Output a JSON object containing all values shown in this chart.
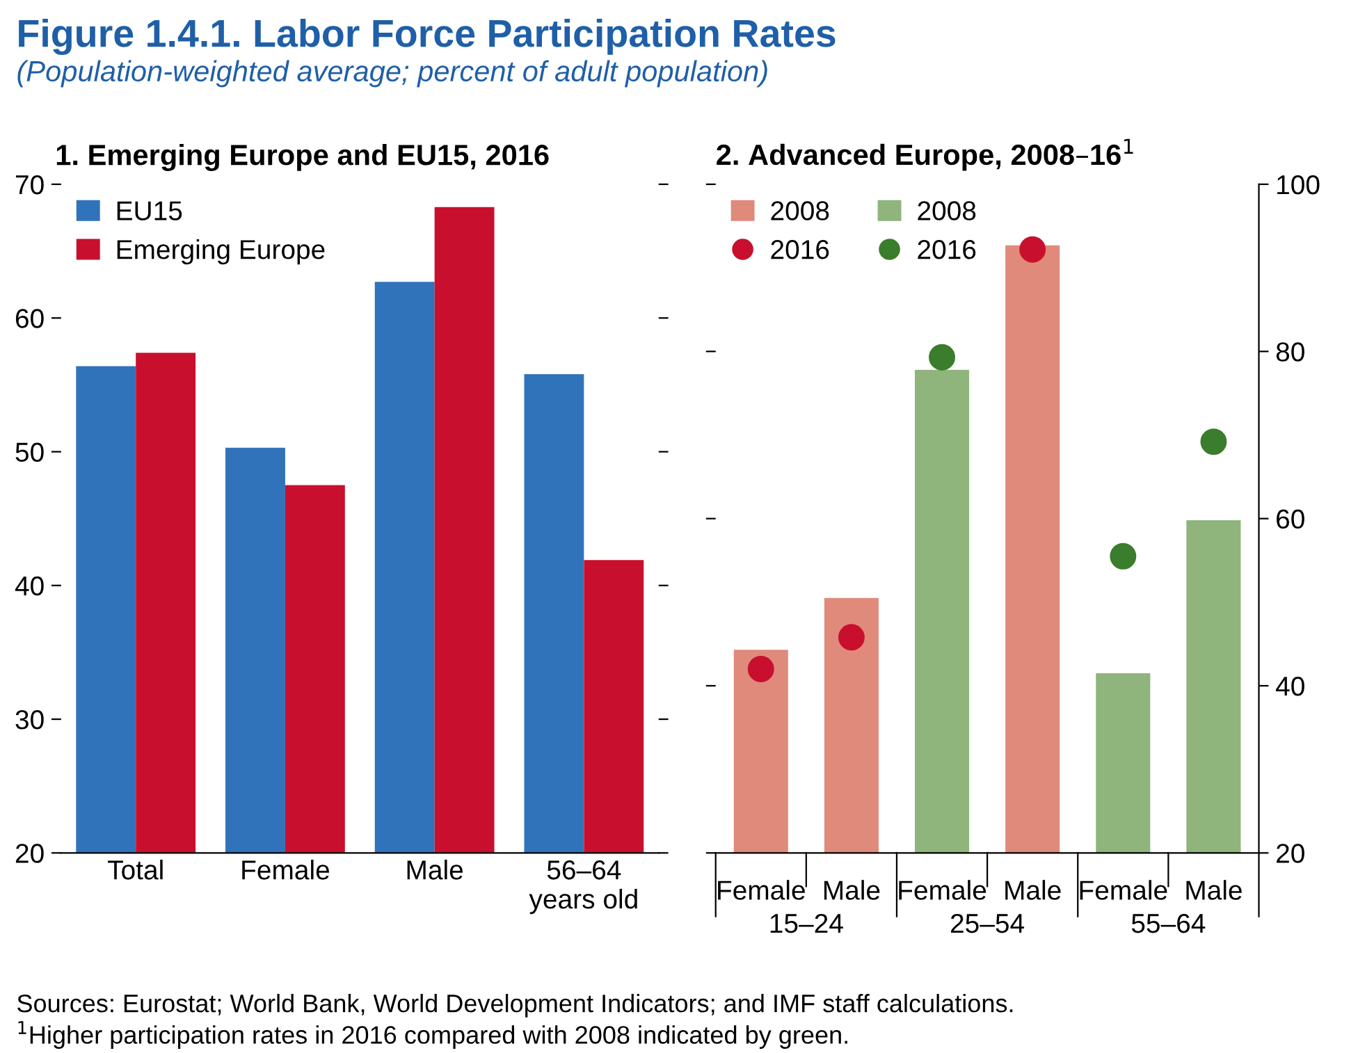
{
  "chart_data": [
    {
      "type": "bar",
      "title": "1. Emerging Europe and EU15, 2016",
      "annotations": [
        "Figure 1.4.1. Labor Force Participation Rates",
        "(Population-weighted average; percent of adult population)",
        "Sources: Eurostat; World Bank, World Development Indicators; and IMF staff calculations.",
        "$^{1}$Higher participation rates in 2016 compared with 2008 indicated by green."
      ],
      "categories": [
        "Total",
        "Female",
        "Male",
        "56–64\nyears old"
      ],
      "series": [
        {
          "name": "EU15",
          "color": "#3073ba",
          "values": [
            56.4,
            50.3,
            62.7,
            55.8
          ]
        },
        {
          "name": "Emerging Europe",
          "color": "#c8102e",
          "values": [
            57.4,
            47.5,
            68.3,
            41.9
          ]
        }
      ],
      "ylim": [
        20,
        70
      ],
      "yticks": [
        20,
        30,
        40,
        50,
        60,
        70
      ],
      "grid": false,
      "legend": "top left"
    },
    {
      "type": "bar",
      "title": "2. Advanced Europe, 2008–16$^{1}$",
      "annotations": [
        "15–24",
        "25–54",
        "55–64"
      ],
      "categories": [
        "Female",
        "Male",
        "Female",
        "Male",
        "Female",
        "Male"
      ],
      "series": [
        {
          "name": "2008",
          "type": "bar",
          "color": "#e08a7c",
          "values": [
            44.3,
            50.5,
            null,
            92.7,
            null,
            null
          ]
        },
        {
          "name": "2016",
          "type": "scatter",
          "color": "#c8102e",
          "values": [
            42.0,
            45.8,
            null,
            92.2,
            null,
            null
          ]
        },
        {
          "name": "2008",
          "type": "bar",
          "color": "#8fb47c",
          "values": [
            null,
            null,
            77.8,
            null,
            41.5,
            59.8
          ]
        },
        {
          "name": "2016",
          "type": "scatter",
          "color": "#3a7d2c",
          "values": [
            null,
            null,
            79.3,
            null,
            55.5,
            69.2
          ]
        }
      ],
      "ylim": [
        20,
        100
      ],
      "yticks": [
        20,
        40,
        60,
        80,
        100
      ],
      "grid": false,
      "legend": "top left",
      "marker": "circle"
    }
  ]
}
